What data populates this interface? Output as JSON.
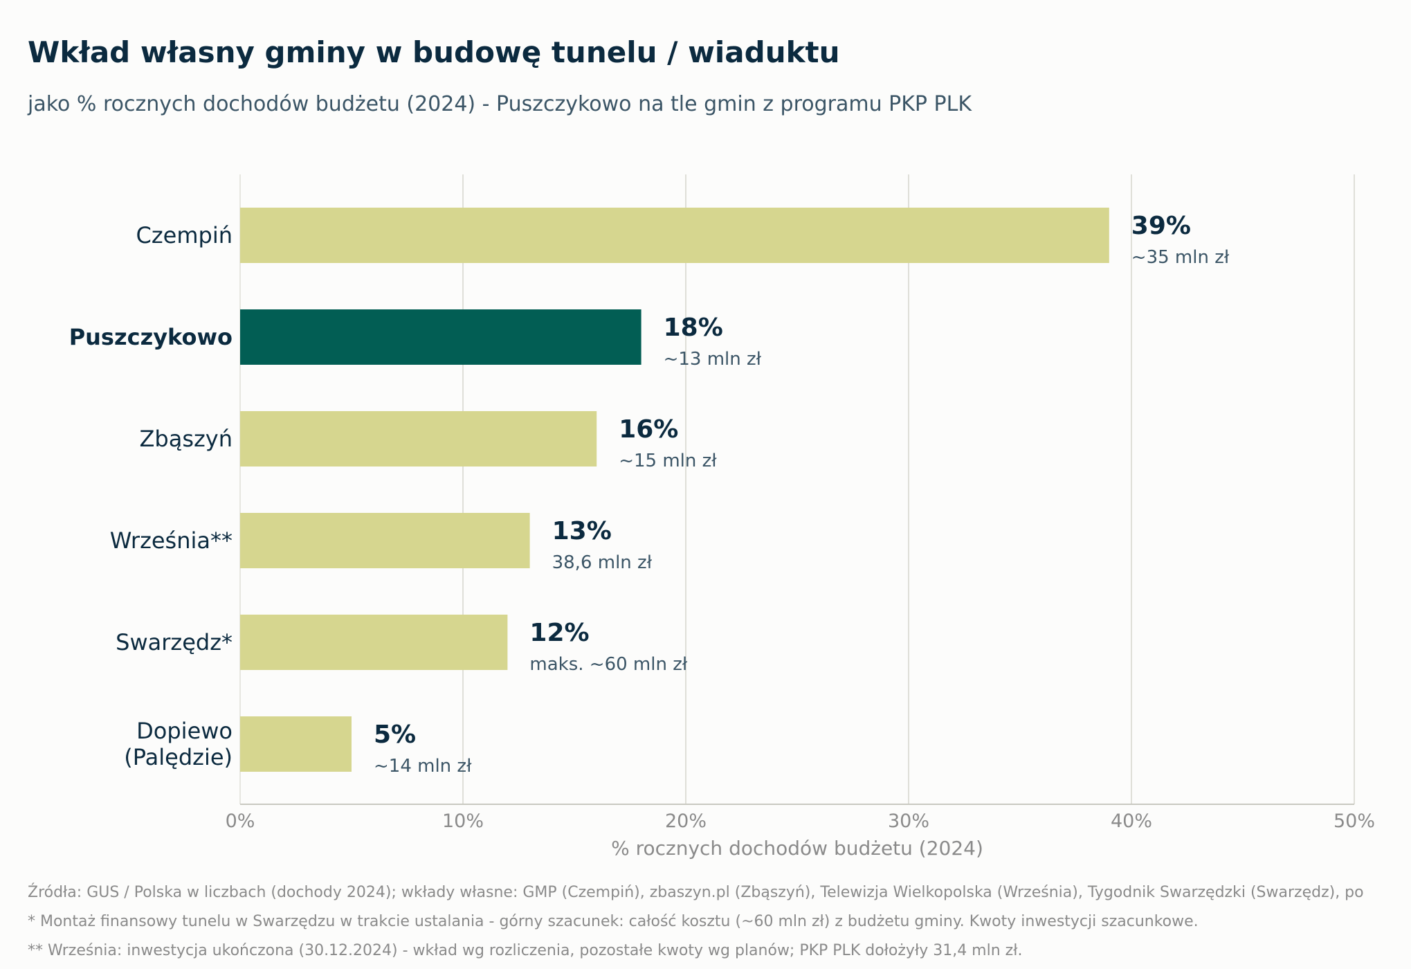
{
  "chart_data": {
    "type": "bar",
    "orientation": "horizontal",
    "title": "Wkład własny gminy w budowę tunelu / wiaduktu",
    "subtitle": "jako % rocznych dochodów budżetu (2024) - Puszczykowo na tle gmin z programu PKP PLK",
    "xlabel": "% rocznych dochodów budżetu (2024)",
    "ylabel": "",
    "xlim": [
      0,
      50
    ],
    "x_ticks": [
      "0%",
      "10%",
      "20%",
      "30%",
      "40%",
      "50%"
    ],
    "grid": "vertical",
    "categories": [
      "Czempiń",
      "Puszczykowo",
      "Zbąszyń",
      "Września**",
      "Swarzędz*",
      "Dopiewo\n(Palędzie)"
    ],
    "values": [
      39,
      18,
      16,
      13,
      12,
      5
    ],
    "value_labels": [
      "39%",
      "18%",
      "16%",
      "13%",
      "12%",
      "5%"
    ],
    "amount_labels": [
      "~35 mln zł",
      "~13 mln zł",
      "~15 mln zł",
      "38,6 mln zł",
      "maks. ~60 mln zł",
      "~14 mln zł"
    ],
    "highlight": "Puszczykowo",
    "colors": {
      "bar": "#d6d68f",
      "highlight_bar": "#025e54",
      "text_dark": "#0b2a3f",
      "text_sub": "#3b5566",
      "text_muted": "#8a8a8a",
      "grid": "#dfdfd8",
      "axis": "#c8c8c0"
    },
    "footnotes": [
      "Źródła: GUS / Polska w liczbach (dochody 2024); wkłady własne: GMP (Czempiń), zbaszyn.pl (Zbąszyń), Telewizja Wielkopolska (Września), Tygodnik Swarzędzki (Swarzędz), po",
      "* Montaż finansowy tunelu w Swarzędzu w trakcie ustalania - górny szacunek: całość kosztu (~60 mln zł) z budżetu gminy. Kwoty inwestycji szacunkowe.",
      "** Września: inwestycja ukończona (30.12.2024) - wkład wg rozliczenia, pozostałe kwoty wg planów; PKP PLK dołożyły 31,4 mln zł."
    ]
  }
}
